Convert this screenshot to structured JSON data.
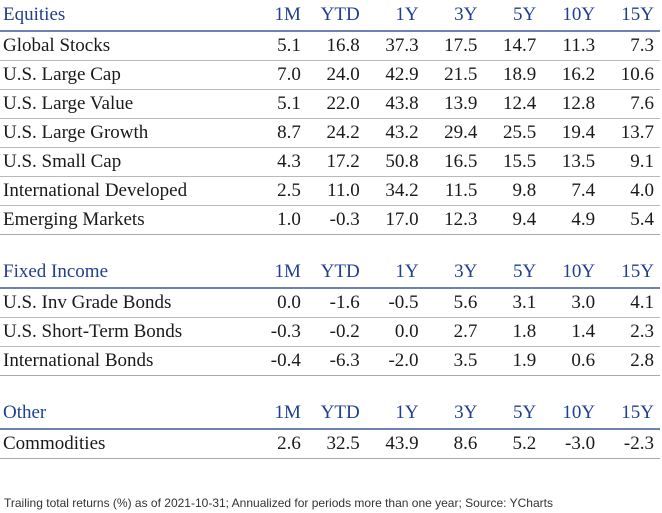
{
  "sections": [
    {
      "header": [
        "Equities",
        "1M",
        "YTD",
        "1Y",
        "3Y",
        "5Y",
        "10Y",
        "15Y"
      ],
      "rows": [
        [
          "Global Stocks",
          "5.1",
          "16.8",
          "37.3",
          "17.5",
          "14.7",
          "11.3",
          "7.3"
        ],
        [
          "U.S. Large Cap",
          "7.0",
          "24.0",
          "42.9",
          "21.5",
          "18.9",
          "16.2",
          "10.6"
        ],
        [
          "U.S. Large Value",
          "5.1",
          "22.0",
          "43.8",
          "13.9",
          "12.4",
          "12.8",
          "7.6"
        ],
        [
          "U.S. Large Growth",
          "8.7",
          "24.2",
          "43.2",
          "29.4",
          "25.5",
          "19.4",
          "13.7"
        ],
        [
          "U.S. Small Cap",
          "4.3",
          "17.2",
          "50.8",
          "16.5",
          "15.5",
          "13.5",
          "9.1"
        ],
        [
          "International Developed",
          "2.5",
          "11.0",
          "34.2",
          "11.5",
          "9.8",
          "7.4",
          "4.0"
        ],
        [
          "Emerging Markets",
          "1.0",
          "-0.3",
          "17.0",
          "12.3",
          "9.4",
          "4.9",
          "5.4"
        ]
      ]
    },
    {
      "header": [
        "Fixed Income",
        "1M",
        "YTD",
        "1Y",
        "3Y",
        "5Y",
        "10Y",
        "15Y"
      ],
      "rows": [
        [
          "U.S. Inv Grade Bonds",
          "0.0",
          "-1.6",
          "-0.5",
          "5.6",
          "3.1",
          "3.0",
          "4.1"
        ],
        [
          "U.S. Short-Term Bonds",
          "-0.3",
          "-0.2",
          "0.0",
          "2.7",
          "1.8",
          "1.4",
          "2.3"
        ],
        [
          "International Bonds",
          "-0.4",
          "-6.3",
          "-2.0",
          "3.5",
          "1.9",
          "0.6",
          "2.8"
        ]
      ]
    },
    {
      "header": [
        "Other",
        "1M",
        "YTD",
        "1Y",
        "3Y",
        "5Y",
        "10Y",
        "15Y"
      ],
      "rows": [
        [
          "Commodities",
          "2.6",
          "32.5",
          "43.9",
          "8.6",
          "5.2",
          "-3.0",
          "-2.3"
        ]
      ]
    }
  ],
  "footnote": "Trailing total returns (%) as of 2021-10-31; Annualized for periods more than one year; Source: YCharts",
  "colors": {
    "header_text": "#1f3f8f",
    "header_rule": "#6f82b4",
    "row_rule": "#b9b9b9",
    "body_text": "#1a1a1a"
  }
}
